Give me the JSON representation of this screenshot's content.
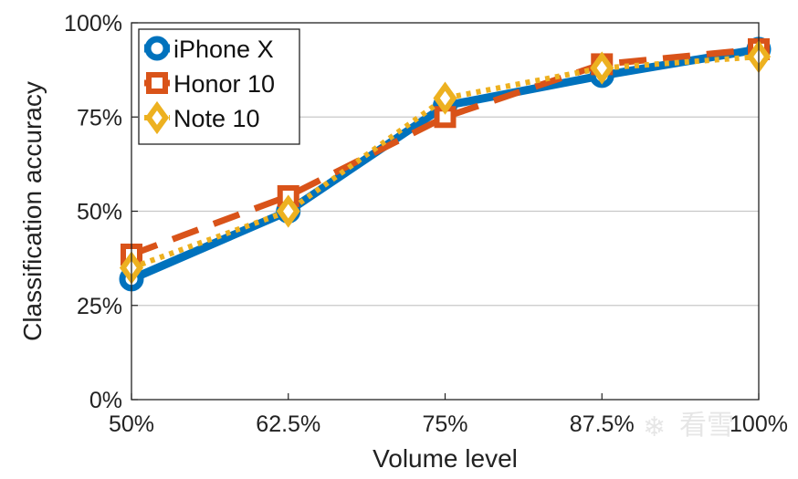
{
  "chart_data": {
    "type": "line",
    "title": "",
    "xlabel": "Volume level",
    "ylabel": "Classification accuracy",
    "categories": [
      "50%",
      "62.5%",
      "75%",
      "87.5%",
      "100%"
    ],
    "x": [
      50,
      62.5,
      75,
      87.5,
      100
    ],
    "yticks": [
      "0%",
      "25%",
      "50%",
      "75%",
      "100%"
    ],
    "ylim": [
      0,
      100
    ],
    "xlim": [
      50,
      100
    ],
    "grid": "horizontal",
    "legend_position": "top-left",
    "series": [
      {
        "name": "iPhone X",
        "values": [
          32,
          50,
          78,
          86,
          93
        ],
        "color": "#0072BD",
        "line_style": "solid",
        "marker": "circle"
      },
      {
        "name": "Honor 10",
        "values": [
          38.5,
          54,
          75,
          89,
          93
        ],
        "color": "#D95319",
        "line_style": "dashed",
        "marker": "square"
      },
      {
        "name": "Note 10",
        "values": [
          35,
          50,
          80,
          88,
          91
        ],
        "color": "#EDB120",
        "line_style": "dotted",
        "marker": "diamond"
      }
    ]
  },
  "watermark": {
    "text": "看雪",
    "icon": "snowflake-icon"
  }
}
